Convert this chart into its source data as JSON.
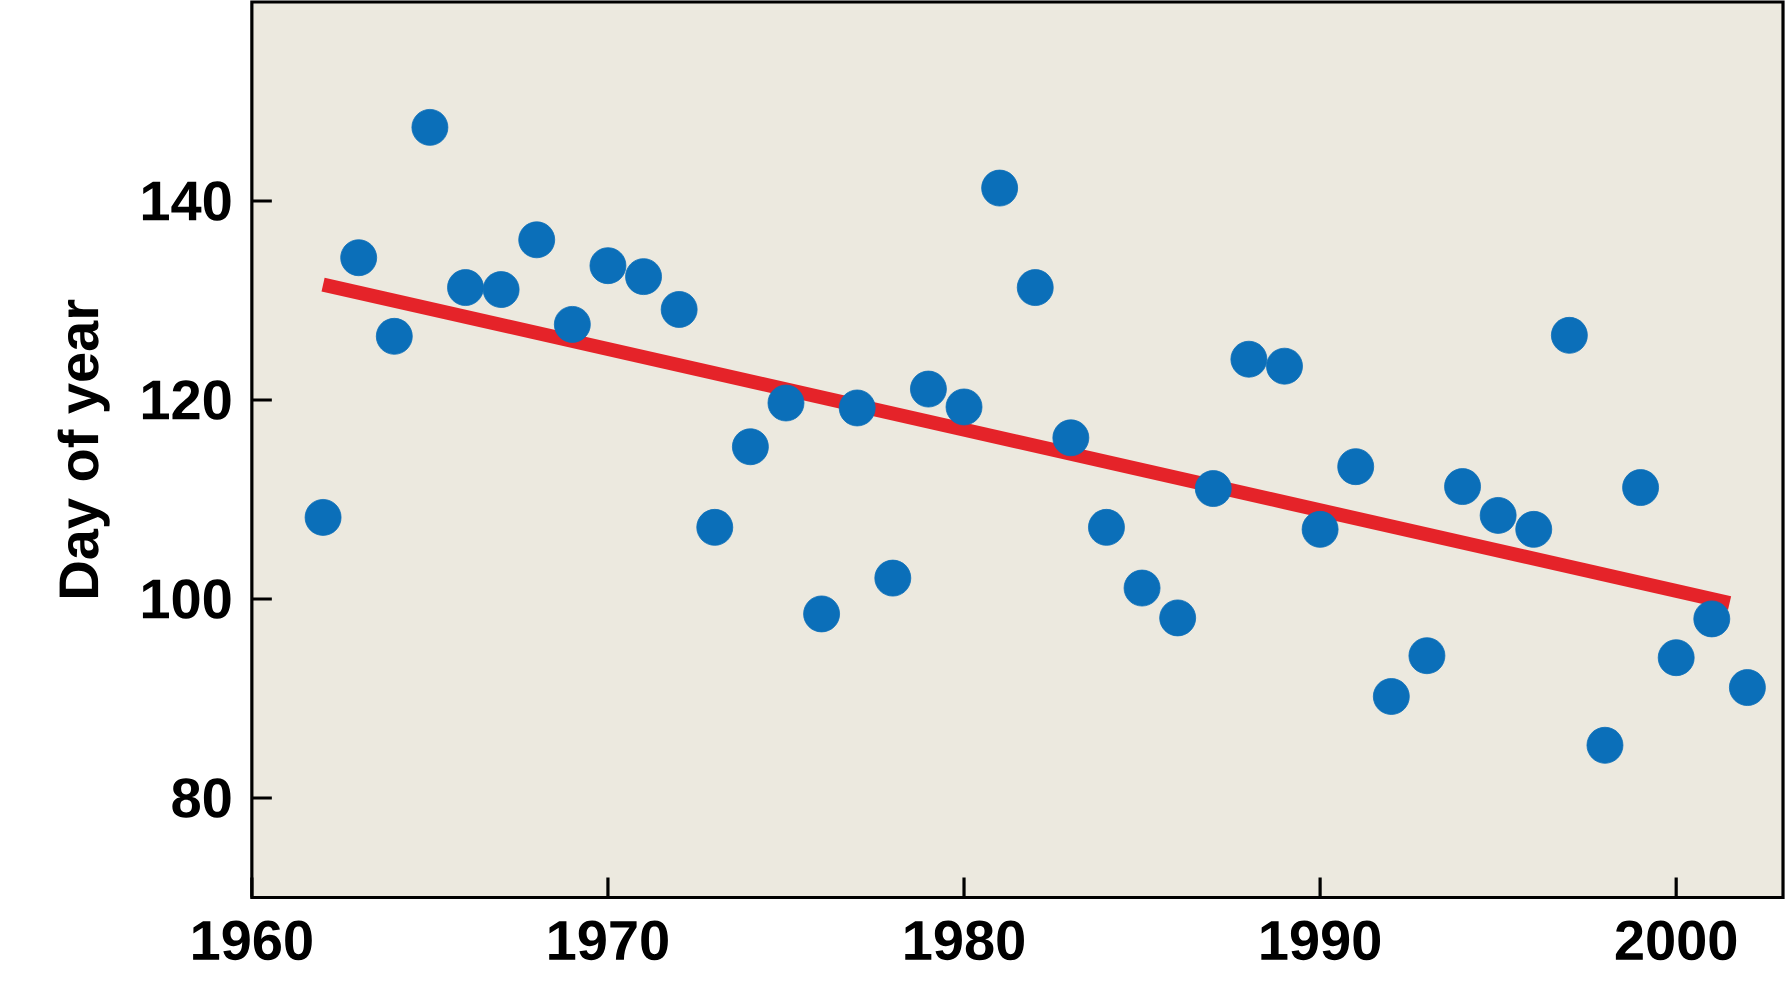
{
  "chart_data": {
    "type": "scatter",
    "ylabel": "Day of year",
    "xlim": [
      1960,
      2003
    ],
    "xticks": [
      1960,
      1970,
      1980,
      1990,
      2000
    ],
    "ylim": [
      70,
      160
    ],
    "yticks": [
      80,
      100,
      120,
      140
    ],
    "grid": false,
    "series": [
      {
        "marker": "circle",
        "color": "#0b6fb9",
        "x": [
          1962,
          1963,
          1964,
          1965,
          1966,
          1967,
          1968,
          1969,
          1970,
          1971,
          1972,
          1973,
          1974,
          1975,
          1976,
          1977,
          1978,
          1979,
          1980,
          1981,
          1982,
          1983,
          1984,
          1985,
          1986,
          1987,
          1988,
          1989,
          1990,
          1991,
          1992,
          1993,
          1994,
          1995,
          1996,
          1997,
          1998,
          1999,
          2000,
          2001,
          2002
        ],
        "values": [
          108.2,
          134.3,
          126.4,
          147.4,
          131.3,
          131.1,
          136.1,
          127.6,
          133.5,
          132.4,
          129.1,
          107.2,
          115.3,
          119.7,
          98.5,
          119.2,
          102.1,
          121.1,
          119.3,
          141.3,
          131.3,
          116.2,
          107.2,
          101.1,
          98.1,
          111.1,
          124.1,
          123.4,
          107.0,
          113.3,
          90.2,
          94.3,
          111.3,
          108.4,
          107.0,
          126.5,
          85.3,
          111.2,
          94.1,
          98.0,
          91.1
        ]
      },
      {
        "type": "line",
        "marker": "none",
        "line_style": "solid",
        "color": "#e52329",
        "x": [
          1962,
          2001.5
        ],
        "values": [
          131.6,
          99.6
        ]
      }
    ]
  }
}
